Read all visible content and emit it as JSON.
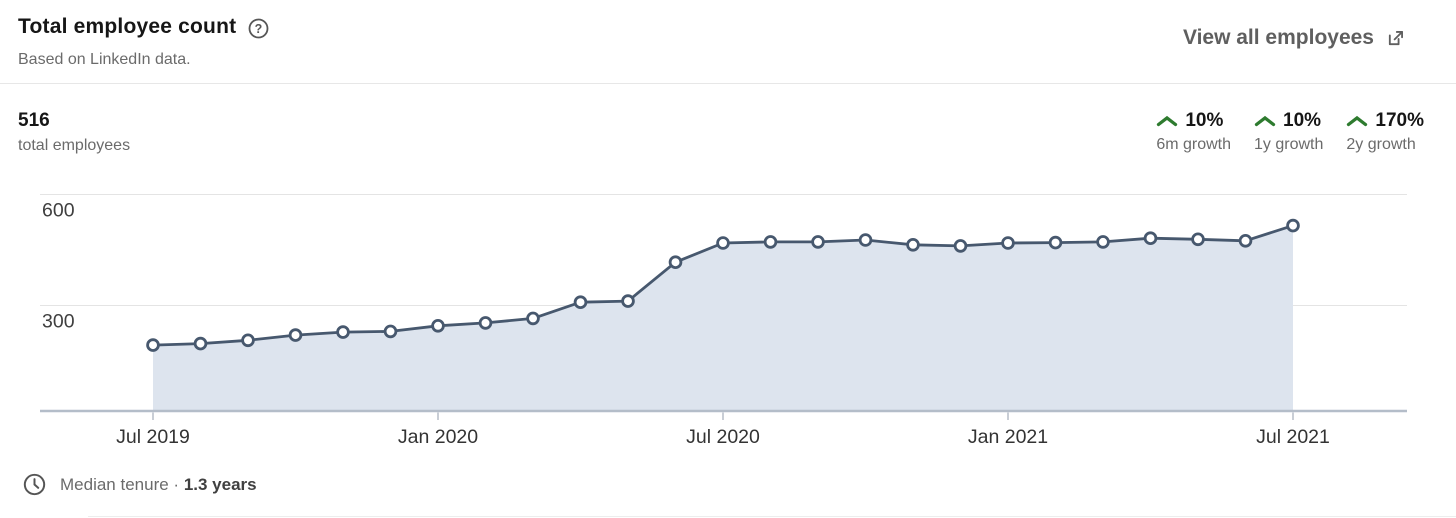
{
  "header": {
    "title": "Total employee count",
    "help_glyph": "?",
    "subtitle": "Based on LinkedIn data.",
    "view_all_label": "View all employees"
  },
  "stats": {
    "primary_value": "516",
    "primary_label": "total employees",
    "growth": [
      {
        "value": "10%",
        "label": "6m growth",
        "direction": "up"
      },
      {
        "value": "10%",
        "label": "1y growth",
        "direction": "up"
      },
      {
        "value": "170%",
        "label": "2y growth",
        "direction": "up"
      }
    ]
  },
  "chart_data": {
    "type": "area",
    "x": [
      "Jul 2019",
      "Aug 2019",
      "Sep 2019",
      "Oct 2019",
      "Nov 2019",
      "Dec 2019",
      "Jan 2020",
      "Feb 2020",
      "Mar 2020",
      "Apr 2020",
      "May 2020",
      "Jun 2020",
      "Jul 2020",
      "Aug 2020",
      "Sep 2020",
      "Oct 2020",
      "Nov 2020",
      "Dec 2020",
      "Jan 2021",
      "Feb 2021",
      "Mar 2021",
      "Apr 2021",
      "May 2021",
      "Jun 2021",
      "Jul 2021"
    ],
    "values": [
      193,
      197,
      206,
      220,
      228,
      230,
      245,
      253,
      265,
      309,
      312,
      417,
      469,
      472,
      472,
      477,
      464,
      461,
      469,
      470,
      472,
      482,
      479,
      475,
      516
    ],
    "x_tick_labels": [
      "Jul 2019",
      "Jan 2020",
      "Jul 2020",
      "Jan 2021",
      "Jul 2021"
    ],
    "x_tick_indices": [
      0,
      6,
      12,
      18,
      24
    ],
    "y_ticks": [
      600,
      300
    ],
    "ylim": [
      0,
      650
    ],
    "grid": true,
    "legend": false,
    "markers": true,
    "fill_to_baseline": true
  },
  "footer": {
    "label": "Median tenure",
    "separator": "·",
    "value": "1.3 years"
  },
  "colors": {
    "line": "#47586e",
    "area_fill": "#dde4ee",
    "marker_fill": "#ffffff",
    "gridline": "#e4e4e4",
    "axis_line": "#b4bdc9",
    "tick": "#c9ced6",
    "y_label": "#3f3f3f",
    "x_label": "#333333",
    "positive_green": "#2e7b2f",
    "muted_text": "#6b6b6b",
    "title_text": "#161616"
  }
}
